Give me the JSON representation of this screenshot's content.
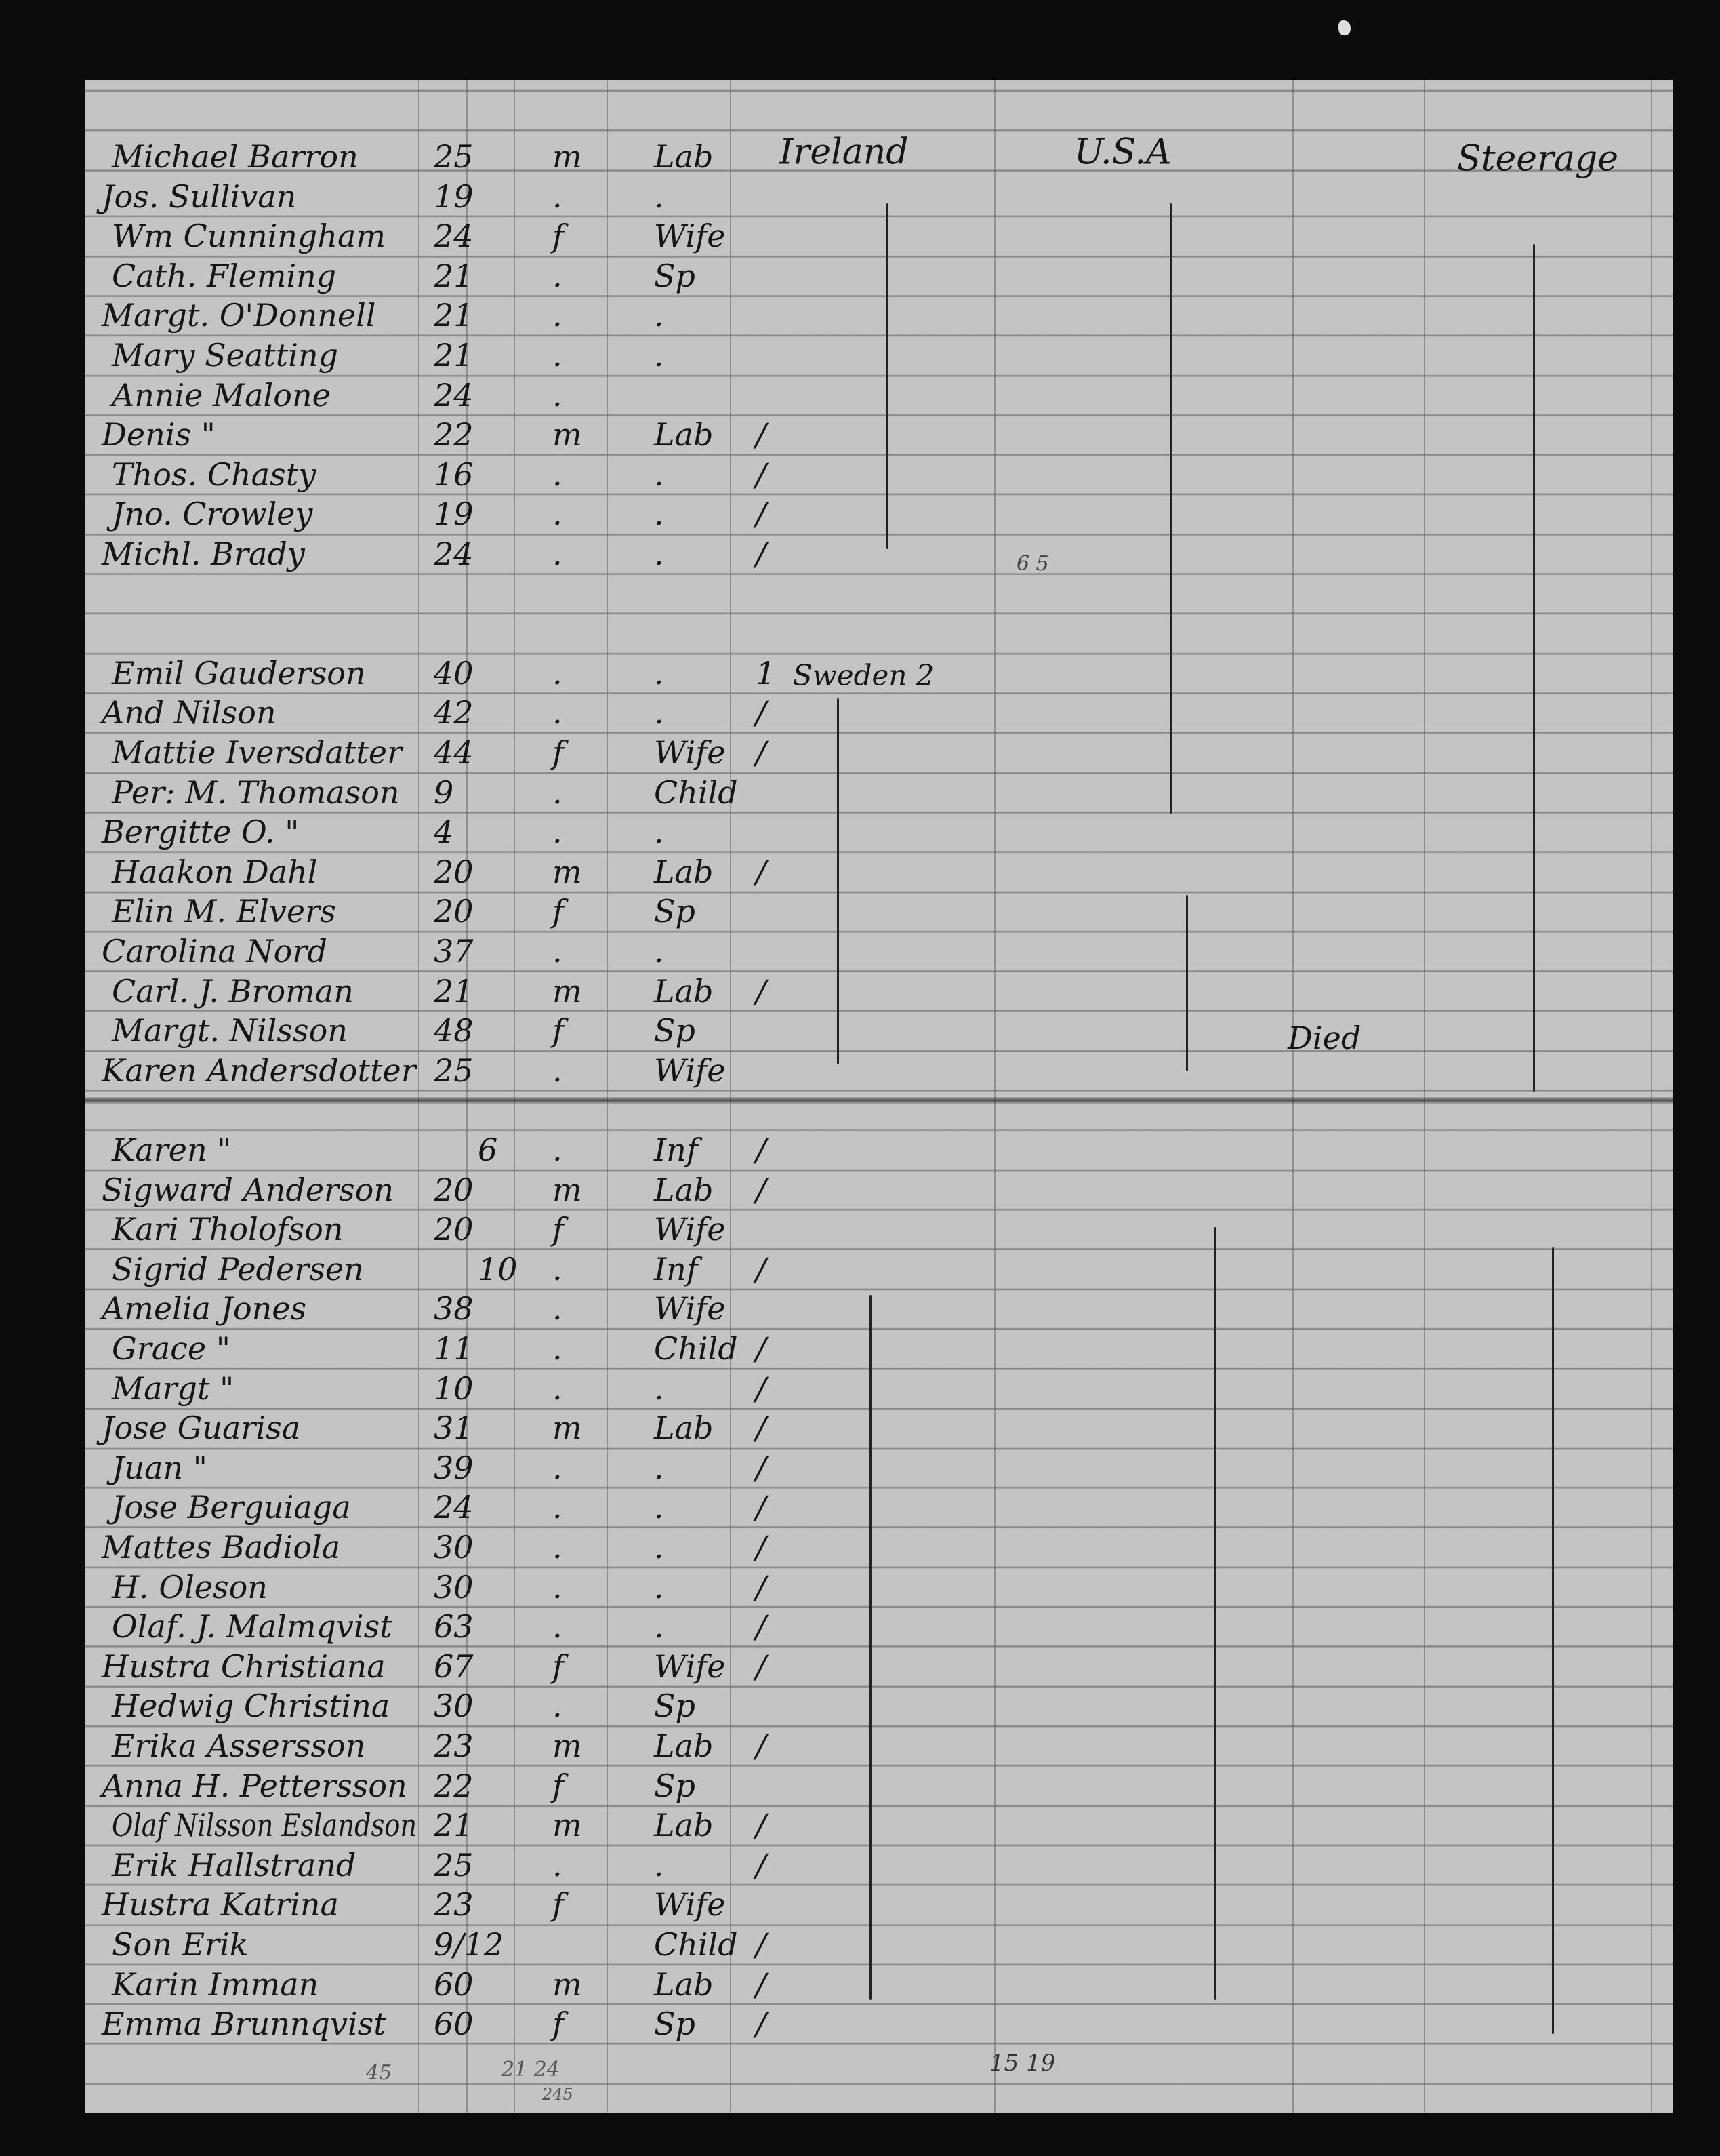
{
  "headers": {
    "country": "Ireland",
    "destination": "U.S.A",
    "class": "Steerage"
  },
  "sections": [
    {
      "rows": [
        {
          "name": "Michael Barron",
          "age": "25",
          "sex": "m",
          "occupation": "Lab",
          "mark": ""
        },
        {
          "name": "Jos. Sullivan",
          "age": "19",
          "sex": ".",
          "occupation": ".",
          "mark": ""
        },
        {
          "name": "Wm Cunningham",
          "age": "24",
          "sex": "f",
          "occupation": "Wife",
          "mark": ""
        },
        {
          "name": "Cath. Fleming",
          "age": "21",
          "sex": ".",
          "occupation": "Sp",
          "mark": ""
        },
        {
          "name": "Margt. O'Donnell",
          "age": "21",
          "sex": ".",
          "occupation": ".",
          "mark": ""
        },
        {
          "name": "Mary Seatting",
          "age": "21",
          "sex": ".",
          "occupation": ".",
          "mark": ""
        },
        {
          "name": "Annie Malone",
          "age": "24",
          "sex": ".",
          "occupation": "",
          "mark": ""
        },
        {
          "name": "Denis \"",
          "age": "22",
          "sex": "m",
          "occupation": "Lab",
          "mark": "/"
        },
        {
          "name": "Thos. Chasty",
          "age": "16",
          "sex": ".",
          "occupation": ".",
          "mark": "/"
        },
        {
          "name": "Jno. Crowley",
          "age": "19",
          "sex": ".",
          "occupation": ".",
          "mark": "/"
        },
        {
          "name": "Michl. Brady",
          "age": "24",
          "sex": ".",
          "occupation": ".",
          "mark": "/"
        }
      ]
    },
    {
      "rows": [
        {
          "name": "Emil Gauderson",
          "age": "40",
          "sex": ".",
          "occupation": ".",
          "mark": "1"
        },
        {
          "name": "And Nilson",
          "age": "42",
          "sex": ".",
          "occupation": ".",
          "mark": "/"
        },
        {
          "name": "Mattie Iversdatter",
          "age": "44",
          "sex": "f",
          "occupation": "Wife",
          "mark": "/"
        },
        {
          "name": "Per: M. Thomason",
          "age": "9",
          "sex": ".",
          "occupation": "Child",
          "mark": ""
        },
        {
          "name": "Bergitte O. \"",
          "age": "4",
          "sex": ".",
          "occupation": ".",
          "mark": ""
        },
        {
          "name": "Haakon Dahl",
          "age": "20",
          "sex": "m",
          "occupation": "Lab",
          "mark": "/"
        },
        {
          "name": "Elin M. Elvers",
          "age": "20",
          "sex": "f",
          "occupation": "Sp",
          "mark": ""
        },
        {
          "name": "Carolina Nord",
          "age": "37",
          "sex": ".",
          "occupation": ".",
          "mark": ""
        },
        {
          "name": "Carl. J. Broman",
          "age": "21",
          "sex": "m",
          "occupation": "Lab",
          "mark": "/"
        },
        {
          "name": "Margt. Nilsson",
          "age": "48",
          "sex": "f",
          "occupation": "Sp",
          "mark": ""
        },
        {
          "name": "Karen Andersdotter",
          "age": "25",
          "sex": ".",
          "occupation": "Wife",
          "mark": ""
        }
      ]
    },
    {
      "rows": [
        {
          "name": "Karen \"",
          "age": "",
          "infant_age": "6",
          "sex": ".",
          "occupation": "Inf",
          "mark": "/"
        },
        {
          "name": "Sigward Anderson",
          "age": "20",
          "sex": "m",
          "occupation": "Lab",
          "mark": "/"
        },
        {
          "name": "Kari Tholofson",
          "age": "20",
          "sex": "f",
          "occupation": "Wife",
          "mark": ""
        },
        {
          "name": "Sigrid Pedersen",
          "age": "",
          "infant_age": "10",
          "sex": ".",
          "occupation": "Inf",
          "mark": "/"
        },
        {
          "name": "Amelia Jones",
          "age": "38",
          "sex": ".",
          "occupation": "Wife",
          "mark": ""
        },
        {
          "name": "Grace \"",
          "age": "11",
          "sex": ".",
          "occupation": "Child",
          "mark": "/"
        },
        {
          "name": "Margt \"",
          "age": "10",
          "sex": ".",
          "occupation": ".",
          "mark": "/"
        },
        {
          "name": "Jose Guarisa",
          "age": "31",
          "sex": "m",
          "occupation": "Lab",
          "mark": "/"
        },
        {
          "name": "Juan \"",
          "age": "39",
          "sex": ".",
          "occupation": ".",
          "mark": "/"
        },
        {
          "name": "Jose Berguiaga",
          "age": "24",
          "sex": ".",
          "occupation": ".",
          "mark": "/"
        },
        {
          "name": "Mattes Badiola",
          "age": "30",
          "sex": ".",
          "occupation": ".",
          "mark": "/"
        },
        {
          "name": "H. Oleson",
          "age": "30",
          "sex": ".",
          "occupation": ".",
          "mark": "/"
        },
        {
          "name": "Olaf. J. Malmqvist",
          "age": "63",
          "sex": ".",
          "occupation": ".",
          "mark": "/"
        },
        {
          "name": "Hustra Christiana",
          "age": "67",
          "sex": "f",
          "occupation": "Wife",
          "mark": "/"
        },
        {
          "name": "Hedwig Christina",
          "age": "30",
          "sex": ".",
          "occupation": "Sp",
          "mark": ""
        },
        {
          "name": "Erika Assersson",
          "age": "23",
          "sex": "m",
          "occupation": "Lab",
          "mark": "/"
        },
        {
          "name": "Anna H. Pettersson",
          "age": "22",
          "sex": "f",
          "occupation": "Sp",
          "mark": ""
        },
        {
          "name": "Olaf Nilsson Eslandson",
          "age": "21",
          "sex": "m",
          "occupation": "Lab",
          "mark": "/"
        },
        {
          "name": "Erik Hallstrand",
          "age": "25",
          "sex": ".",
          "occupation": ".",
          "mark": "/"
        },
        {
          "name": "Hustra Katrina",
          "age": "23",
          "sex": "f",
          "occupation": "Wife",
          "mark": ""
        },
        {
          "name": "Son Erik",
          "age": "9/12",
          "sex": "",
          "occupation": "Child",
          "mark": "/"
        },
        {
          "name": "Karin Imman",
          "age": "60",
          "sex": "m",
          "occupation": "Lab",
          "mark": "/"
        },
        {
          "name": "Emma Brunnqvist",
          "age": "60",
          "sex": "f",
          "occupation": "Sp",
          "mark": "/"
        }
      ]
    }
  ],
  "annotations": {
    "sweden": "Sweden 2",
    "count_top": "6 5",
    "died": "Died",
    "count_bottom": "15 19",
    "pencil_1": "45",
    "pencil_2": "21 24",
    "pencil_3": "245"
  }
}
